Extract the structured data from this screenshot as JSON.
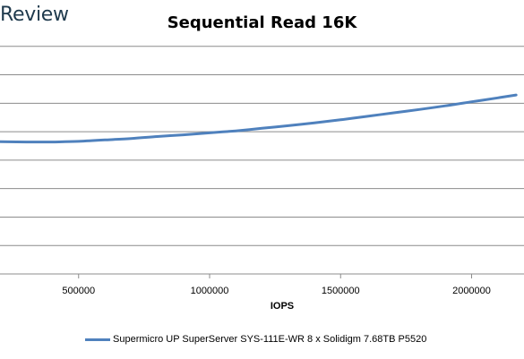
{
  "header": {
    "brand_text": "Review"
  },
  "chart_data": {
    "type": "line",
    "title": "Sequential Read 16K",
    "xlabel": "IOPS",
    "ylabel": "",
    "xlim": [
      200000,
      2200000
    ],
    "ylim": [
      0,
      9
    ],
    "x_ticks": [
      500000,
      1000000,
      1500000,
      2000000
    ],
    "x_tick_labels": [
      "500000",
      "1000000",
      "1500000",
      "2000000"
    ],
    "y_gridlines": [
      0,
      1,
      2,
      3,
      4,
      5,
      6,
      7,
      8,
      9
    ],
    "grid": true,
    "legend_position": "bottom",
    "series": [
      {
        "name": "Supermicro UP SuperServer SYS-111E-WR 8 x Solidigm 7.68TB P5520",
        "color": "#4f81bd",
        "points": [
          [
            200000,
            4.65
          ],
          [
            300000,
            4.64
          ],
          [
            400000,
            4.64
          ],
          [
            500000,
            4.66
          ],
          [
            600000,
            4.71
          ],
          [
            700000,
            4.76
          ],
          [
            800000,
            4.83
          ],
          [
            900000,
            4.89
          ],
          [
            1000000,
            4.96
          ],
          [
            1100000,
            5.03
          ],
          [
            1200000,
            5.12
          ],
          [
            1300000,
            5.21
          ],
          [
            1400000,
            5.31
          ],
          [
            1500000,
            5.42
          ],
          [
            1600000,
            5.54
          ],
          [
            1700000,
            5.66
          ],
          [
            1800000,
            5.78
          ],
          [
            1900000,
            5.91
          ],
          [
            2000000,
            6.05
          ],
          [
            2100000,
            6.19
          ],
          [
            2170000,
            6.29
          ]
        ]
      }
    ]
  }
}
